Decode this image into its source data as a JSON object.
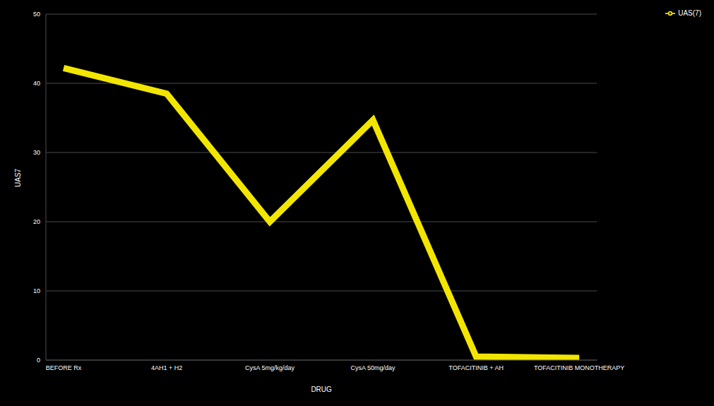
{
  "chart_data": {
    "type": "line",
    "x_label": "DRUG",
    "y_label": "UAS7",
    "categories": [
      "BEFORE Rx",
      "4AH1 + H2",
      "CysA 5mg/kg/day",
      "CysA 50mg/day",
      "TOFACITINIB + AH",
      "TOFACITINIB MONOTHERAPY"
    ],
    "series": [
      {
        "name": "UAS(7)",
        "color": "#f2e600",
        "values": [
          42.2,
          38.5,
          20,
          34.7,
          0.5,
          0.3
        ]
      }
    ],
    "ylim": [
      0,
      50
    ],
    "yticks": [
      0,
      10,
      20,
      30,
      40,
      50
    ],
    "grid": true,
    "legend": "upper right"
  }
}
